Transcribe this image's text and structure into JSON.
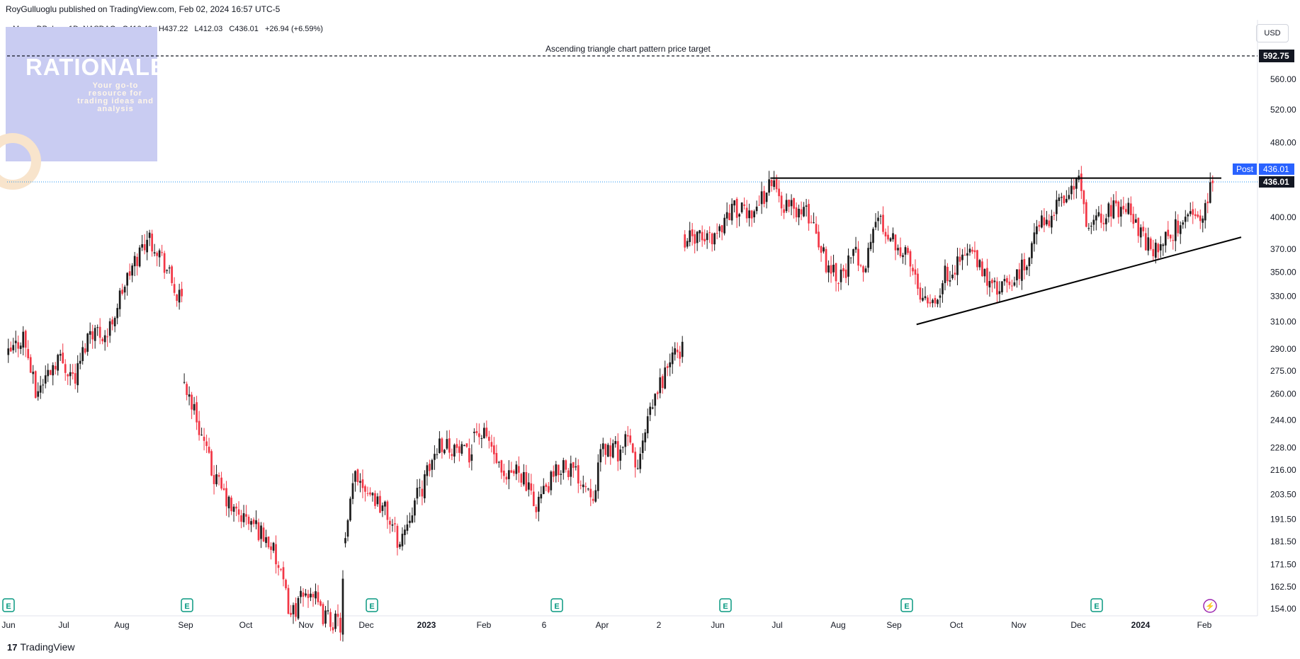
{
  "header": {
    "published": "RoyGulluoglu published on TradingView.com, Feb 02, 2024 16:57 UTC-5",
    "symbol": "MongoDB, Inc., 1D, NASDAQ",
    "open": "O416.40",
    "high": "H437.22",
    "low": "L412.03",
    "close": "C436.01",
    "change": "+26.94 (+6.59%)",
    "currency": "USD"
  },
  "logo": {
    "word": "RATIONALE",
    "sub": "Your go-to resource for trading ideas and analysis"
  },
  "footer": {
    "brand": "TradingView",
    "mark": "17"
  },
  "colors": {
    "up": "#1c1c1c",
    "down": "#f23645",
    "accent": "#2962ff",
    "axis": "#131722",
    "target_line": "#131722",
    "current_line": "#2196f3"
  },
  "chart_data": {
    "type": "candlestick",
    "title": "MongoDB, Inc., 1D, NASDAQ",
    "y_scale": "log",
    "y_ticks": [
      154.0,
      162.5,
      171.5,
      181.5,
      191.5,
      203.5,
      216.0,
      228.0,
      244.0,
      260.0,
      275.0,
      290.0,
      310.0,
      330.0,
      350.0,
      370.0,
      400.0,
      480.0,
      520.0,
      560.0,
      592.75
    ],
    "y_tick_labels": [
      "154.00",
      "162.50",
      "171.50",
      "181.50",
      "191.50",
      "203.50",
      "216.00",
      "228.00",
      "244.00",
      "260.00",
      "275.00",
      "290.00",
      "310.00",
      "330.00",
      "350.00",
      "370.00",
      "400.00",
      "480.00",
      "520.00",
      "560.00",
      "592.75"
    ],
    "x_tick_labels": [
      "Jun",
      "Jul",
      "Aug",
      "Sep",
      "Oct",
      "Nov",
      "Dec",
      "2023",
      "Feb",
      "6",
      "Apr",
      "2",
      "Jun",
      "Jul",
      "Aug",
      "Sep",
      "Oct",
      "Nov",
      "Dec",
      "2024",
      "Feb"
    ],
    "events": [
      "E",
      "E",
      "E",
      "E",
      "E",
      "E",
      "E",
      "⚡"
    ],
    "target": {
      "label": "Ascending triangle chart pattern price target",
      "value": 592.75,
      "value_label": "592.75"
    },
    "current": {
      "value": 436.01,
      "label": "436.01",
      "post_label": "Post",
      "post_value": "436.01"
    },
    "resistance": {
      "value": 440
    },
    "support": {
      "from_value": 308,
      "to_value": 381
    },
    "anchors": [
      [
        0,
        285
      ],
      [
        6,
        300
      ],
      [
        11,
        260
      ],
      [
        20,
        285
      ],
      [
        27,
        270
      ],
      [
        33,
        305
      ],
      [
        40,
        300
      ],
      [
        46,
        335
      ],
      [
        51,
        358
      ],
      [
        56,
        382
      ],
      [
        60,
        372
      ],
      [
        64,
        352
      ],
      [
        68,
        330
      ],
      [
        70,
        325
      ],
      [
        71,
        268
      ],
      [
        76,
        245
      ],
      [
        82,
        215
      ],
      [
        90,
        196
      ],
      [
        100,
        188
      ],
      [
        106,
        180
      ],
      [
        114,
        152
      ],
      [
        122,
        162
      ],
      [
        126,
        152
      ],
      [
        130,
        150
      ],
      [
        134,
        148
      ],
      [
        136,
        180
      ],
      [
        140,
        215
      ],
      [
        146,
        205
      ],
      [
        152,
        196
      ],
      [
        158,
        180
      ],
      [
        162,
        195
      ],
      [
        168,
        210
      ],
      [
        174,
        232
      ],
      [
        180,
        228
      ],
      [
        186,
        222
      ],
      [
        188,
        238
      ],
      [
        194,
        232
      ],
      [
        200,
        208
      ],
      [
        206,
        218
      ],
      [
        212,
        198
      ],
      [
        218,
        208
      ],
      [
        224,
        220
      ],
      [
        230,
        213
      ],
      [
        236,
        205
      ],
      [
        240,
        228
      ],
      [
        246,
        226
      ],
      [
        250,
        232
      ],
      [
        254,
        216
      ],
      [
        258,
        242
      ],
      [
        262,
        262
      ],
      [
        267,
        282
      ],
      [
        272,
        291
      ],
      [
        273,
        380
      ],
      [
        280,
        378
      ],
      [
        286,
        385
      ],
      [
        292,
        410
      ],
      [
        298,
        402
      ],
      [
        304,
        418
      ],
      [
        308,
        438
      ],
      [
        312,
        414
      ],
      [
        318,
        408
      ],
      [
        324,
        400
      ],
      [
        330,
        358
      ],
      [
        336,
        347
      ],
      [
        342,
        366
      ],
      [
        346,
        353
      ],
      [
        350,
        400
      ],
      [
        356,
        383
      ],
      [
        362,
        366
      ],
      [
        368,
        335
      ],
      [
        374,
        327
      ],
      [
        378,
        347
      ],
      [
        384,
        360
      ],
      [
        388,
        370
      ],
      [
        392,
        352
      ],
      [
        398,
        336
      ],
      [
        404,
        338
      ],
      [
        410,
        355
      ],
      [
        416,
        392
      ],
      [
        422,
        405
      ],
      [
        428,
        427
      ],
      [
        432,
        438
      ],
      [
        436,
        382
      ],
      [
        440,
        400
      ],
      [
        446,
        408
      ],
      [
        452,
        414
      ],
      [
        456,
        386
      ],
      [
        462,
        368
      ],
      [
        466,
        376
      ],
      [
        472,
        392
      ],
      [
        478,
        405
      ],
      [
        483,
        404
      ],
      [
        486,
        436
      ]
    ]
  }
}
